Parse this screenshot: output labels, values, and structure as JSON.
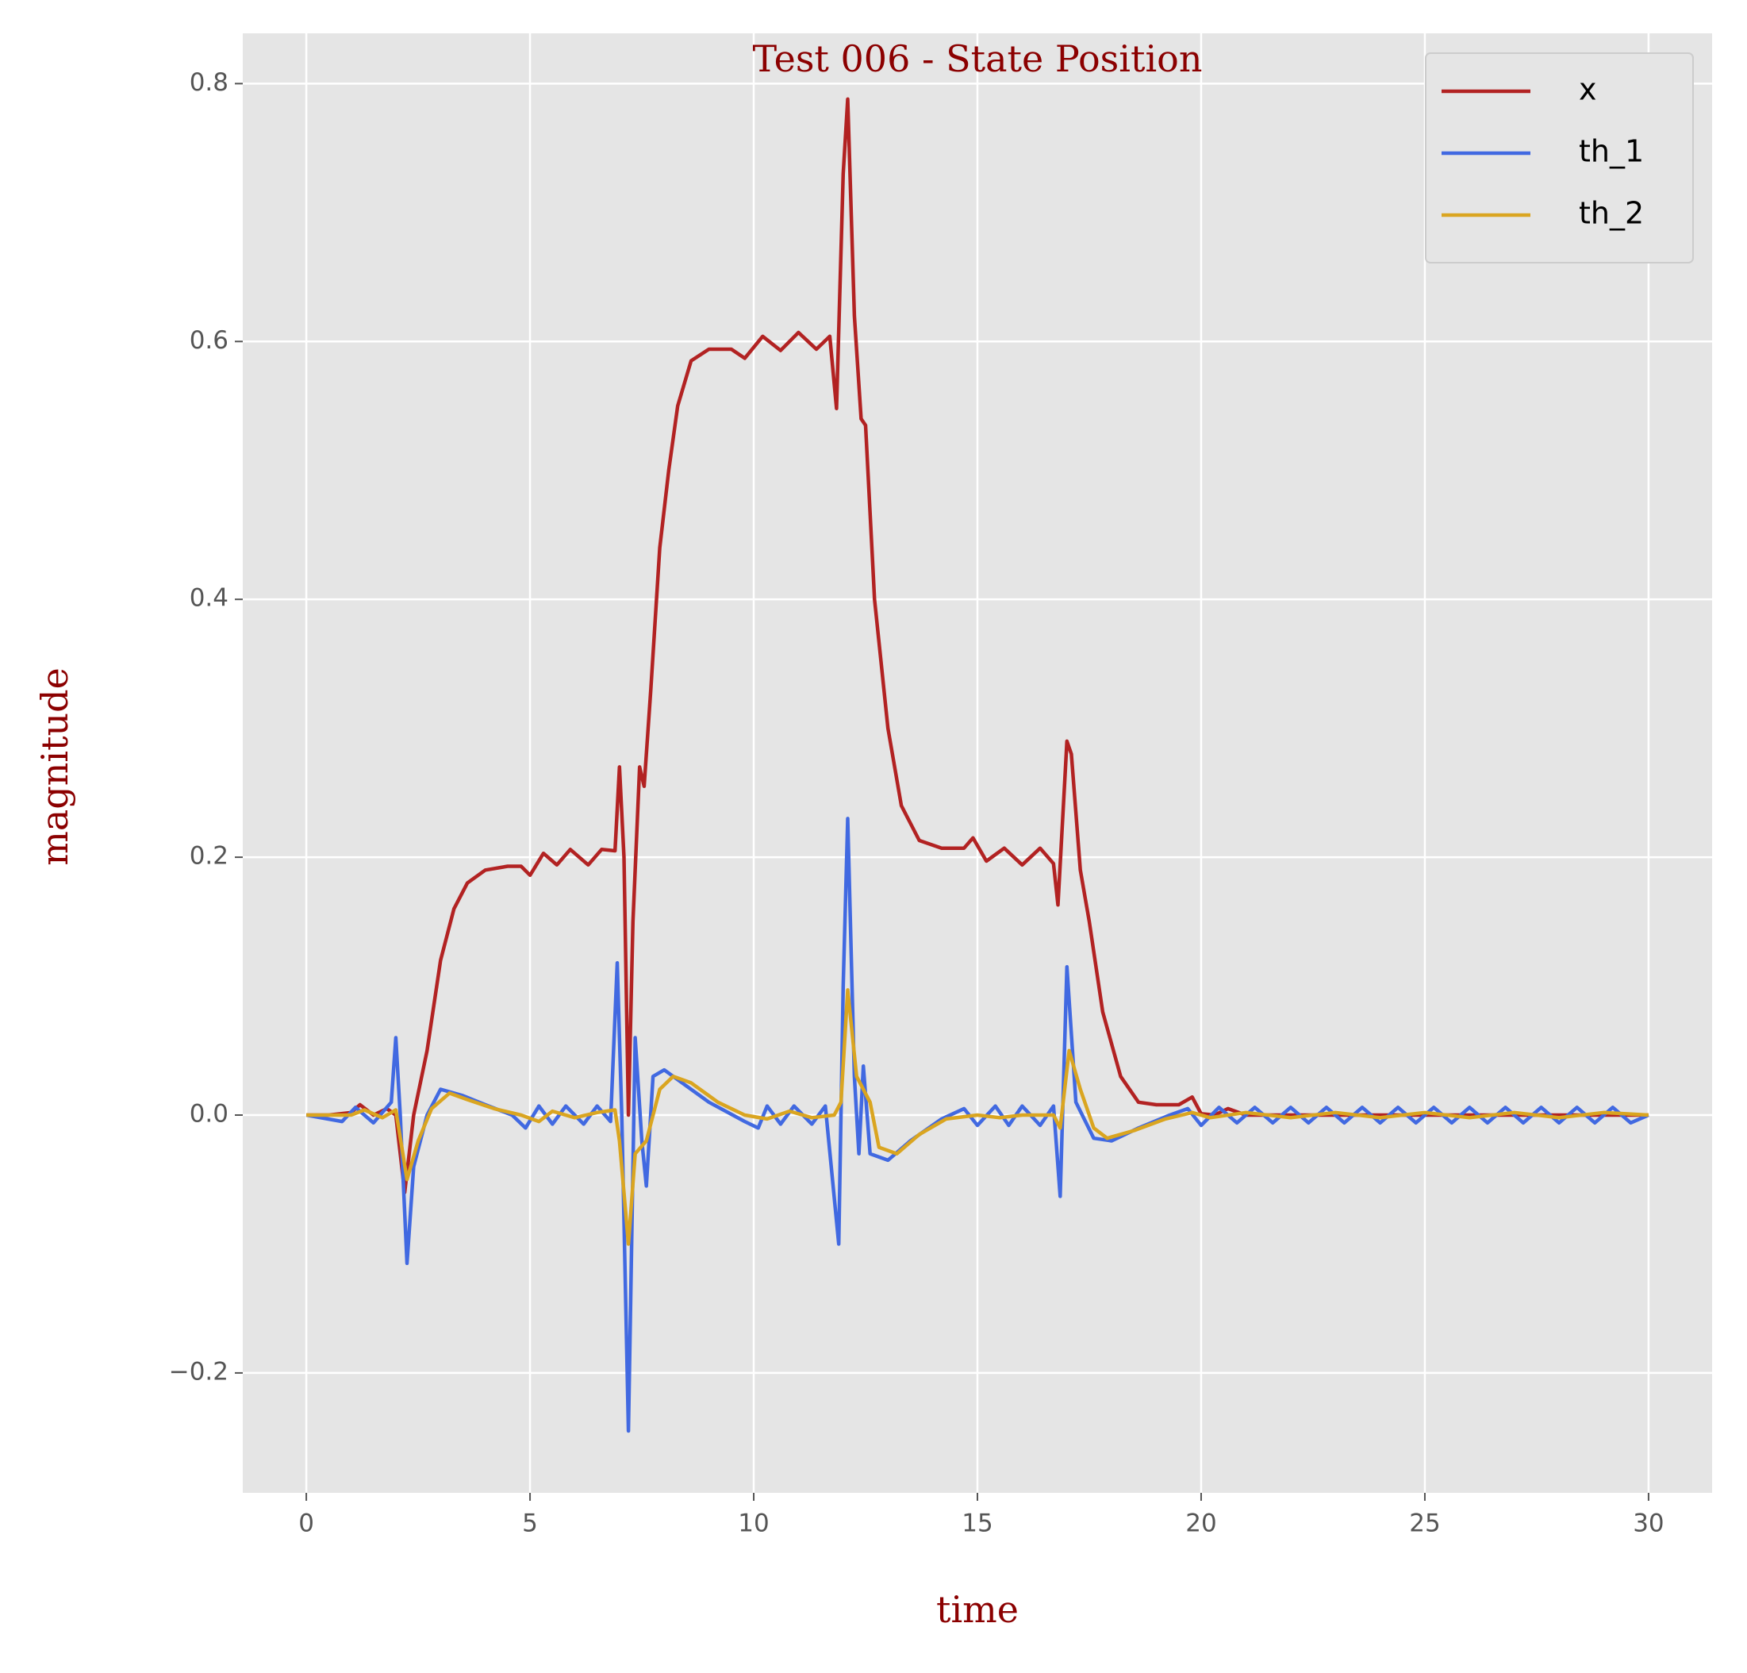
{
  "chart_data": {
    "type": "line",
    "title": "Test 006 - State Position",
    "xlabel": "time",
    "ylabel": "magnitude",
    "xlim": [
      -1.42,
      31.42
    ],
    "ylim": [
      -0.293,
      0.839
    ],
    "xticks": [
      0,
      5,
      10,
      15,
      20,
      25,
      30
    ],
    "yticks": [
      {
        "value": -0.2,
        "label": "−0.2"
      },
      {
        "value": 0,
        "label": "0.0"
      },
      0.2,
      0.4,
      0.6,
      0.8
    ],
    "grid": true,
    "legend": "upper right",
    "series": [
      {
        "name": "x",
        "color": "#b22222",
        "x": [
          0,
          0.5,
          1.0,
          1.2,
          1.5,
          1.8,
          2.0,
          2.2,
          2.4,
          2.7,
          3.0,
          3.3,
          3.6,
          4.0,
          4.5,
          4.8,
          5.0,
          5.3,
          5.6,
          5.9,
          6.3,
          6.6,
          6.9,
          7.0,
          7.1,
          7.2,
          7.3,
          7.45,
          7.55,
          7.7,
          7.9,
          8.1,
          8.3,
          8.6,
          9.0,
          9.5,
          9.8,
          10.2,
          10.6,
          11.0,
          11.4,
          11.7,
          11.85,
          12.0,
          12.1,
          12.25,
          12.4,
          12.5,
          12.7,
          13.0,
          13.3,
          13.7,
          14.2,
          14.7,
          14.9,
          15.2,
          15.6,
          16.0,
          16.4,
          16.7,
          16.8,
          17.0,
          17.1,
          17.3,
          17.5,
          17.8,
          18.2,
          18.6,
          19.0,
          19.5,
          19.8,
          20.0,
          20.3,
          20.6,
          21.0,
          30.0
        ],
        "values": [
          0,
          0,
          0.002,
          0.008,
          0.0,
          0.005,
          0.0,
          -0.06,
          0.0,
          0.05,
          0.12,
          0.16,
          0.18,
          0.19,
          0.193,
          0.193,
          0.186,
          0.203,
          0.194,
          0.206,
          0.194,
          0.206,
          0.205,
          0.27,
          0.2,
          0.0,
          0.15,
          0.27,
          0.255,
          0.33,
          0.44,
          0.5,
          0.55,
          0.585,
          0.594,
          0.594,
          0.587,
          0.604,
          0.593,
          0.607,
          0.594,
          0.604,
          0.548,
          0.73,
          0.788,
          0.62,
          0.54,
          0.535,
          0.4,
          0.3,
          0.24,
          0.213,
          0.207,
          0.207,
          0.215,
          0.197,
          0.207,
          0.194,
          0.207,
          0.195,
          0.163,
          0.29,
          0.28,
          0.19,
          0.15,
          0.08,
          0.03,
          0.01,
          0.008,
          0.008,
          0.014,
          0.001,
          0.0,
          0.005,
          0,
          0
        ]
      },
      {
        "name": "th_1",
        "color": "#4169e1",
        "x": [
          0,
          0.8,
          1.1,
          1.5,
          1.9,
          2.0,
          2.1,
          2.25,
          2.4,
          2.7,
          3.0,
          3.5,
          4.0,
          4.6,
          4.9,
          5.2,
          5.5,
          5.8,
          6.2,
          6.5,
          6.8,
          6.95,
          7.05,
          7.2,
          7.35,
          7.5,
          7.6,
          7.75,
          8.0,
          8.4,
          9.0,
          9.8,
          10.1,
          10.3,
          10.6,
          10.9,
          11.3,
          11.6,
          11.9,
          12.0,
          12.1,
          12.25,
          12.35,
          12.45,
          12.6,
          13.0,
          13.5,
          14.2,
          14.7,
          15.0,
          15.4,
          15.7,
          16.0,
          16.4,
          16.7,
          16.85,
          17.0,
          17.2,
          17.6,
          18.0,
          18.6,
          19.3,
          19.7,
          20.0,
          20.4,
          20.8,
          21.2,
          21.6,
          22.0,
          22.4,
          22.8,
          23.2,
          23.6,
          24.0,
          24.4,
          24.8,
          25.2,
          25.6,
          26.0,
          26.4,
          26.8,
          27.2,
          27.6,
          28.0,
          28.4,
          28.8,
          29.2,
          29.6,
          30.0
        ],
        "values": [
          0,
          -0.005,
          0.006,
          -0.006,
          0.01,
          0.06,
          0.0,
          -0.115,
          -0.04,
          0.0,
          0.02,
          0.015,
          0.008,
          0.0,
          -0.01,
          0.007,
          -0.007,
          0.007,
          -0.007,
          0.007,
          -0.005,
          0.118,
          0.0,
          -0.245,
          0.06,
          -0.02,
          -0.055,
          0.03,
          0.035,
          0.025,
          0.01,
          -0.005,
          -0.01,
          0.007,
          -0.007,
          0.007,
          -0.007,
          0.007,
          -0.1,
          0.1,
          0.23,
          0.03,
          -0.03,
          0.038,
          -0.03,
          -0.035,
          -0.02,
          -0.003,
          0.005,
          -0.008,
          0.007,
          -0.008,
          0.007,
          -0.008,
          0.007,
          -0.063,
          0.115,
          0.01,
          -0.018,
          -0.02,
          -0.01,
          0.0,
          0.005,
          -0.008,
          0.006,
          -0.006,
          0.006,
          -0.006,
          0.006,
          -0.006,
          0.006,
          -0.006,
          0.006,
          -0.006,
          0.006,
          -0.006,
          0.006,
          -0.006,
          0.006,
          -0.006,
          0.006,
          -0.006,
          0.006,
          -0.006,
          0.006,
          -0.006,
          0.006,
          -0.006,
          0.0
        ]
      },
      {
        "name": "th_2",
        "color": "#daa520",
        "x": [
          0,
          1.0,
          1.3,
          1.7,
          2.0,
          2.25,
          2.5,
          2.8,
          3.2,
          3.6,
          4.2,
          4.8,
          5.2,
          5.5,
          6.0,
          6.5,
          6.9,
          7.0,
          7.2,
          7.35,
          7.6,
          7.9,
          8.2,
          8.6,
          9.2,
          9.8,
          10.3,
          10.8,
          11.3,
          11.8,
          11.95,
          12.1,
          12.3,
          12.6,
          12.8,
          13.2,
          13.7,
          14.3,
          15.0,
          15.5,
          16.0,
          16.7,
          16.85,
          17.05,
          17.3,
          17.6,
          17.9,
          18.5,
          19.2,
          19.8,
          20.2,
          21,
          22,
          23,
          24,
          25,
          26,
          27,
          28,
          29,
          30
        ],
        "values": [
          0,
          0.0,
          0.004,
          -0.002,
          0.004,
          -0.05,
          -0.02,
          0.005,
          0.017,
          0.012,
          0.005,
          0.0,
          -0.005,
          0.003,
          -0.002,
          0.002,
          0.004,
          -0.02,
          -0.1,
          -0.03,
          -0.02,
          0.02,
          0.03,
          0.025,
          0.01,
          0.0,
          -0.003,
          0.003,
          -0.002,
          0.0,
          0.01,
          0.097,
          0.03,
          0.01,
          -0.025,
          -0.03,
          -0.015,
          -0.003,
          0.0,
          -0.002,
          0.0,
          0.0,
          -0.01,
          0.05,
          0.02,
          -0.01,
          -0.018,
          -0.012,
          -0.003,
          0.002,
          -0.002,
          0.002,
          -0.002,
          0.002,
          -0.002,
          0.002,
          -0.002,
          0.002,
          -0.002,
          0.002,
          0
        ]
      }
    ]
  }
}
